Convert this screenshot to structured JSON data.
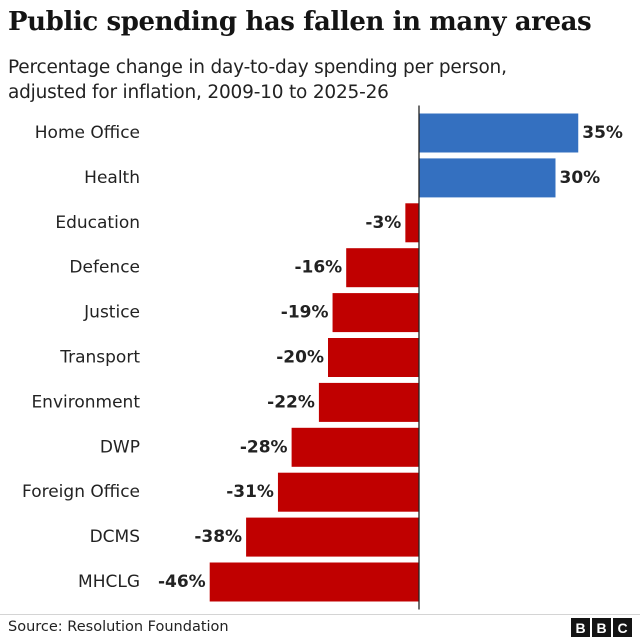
{
  "header": {
    "title": "Public spending has fallen in many areas",
    "subtitle_line1": "Percentage change in day-to-day spending per person,",
    "subtitle_line2": "adjusted for inflation, 2009-10 to 2025-26"
  },
  "colors": {
    "positive": "#3470c0",
    "negative": "#c00000",
    "axis": "#222222"
  },
  "chart_data": {
    "type": "bar",
    "orientation": "horizontal",
    "title": "Public spending has fallen in many areas",
    "subtitle": "Percentage change in day-to-day spending per person, adjusted for inflation, 2009-10 to 2025-26",
    "categories": [
      "Home Office",
      "Health",
      "Education",
      "Defence",
      "Justice",
      "Transport",
      "Environment",
      "DWP",
      "Foreign Office",
      "DCMS",
      "MHCLG"
    ],
    "values": [
      35,
      30,
      -3,
      -16,
      -19,
      -20,
      -22,
      -28,
      -31,
      -38,
      -46
    ],
    "value_labels": [
      "35%",
      "30%",
      "-3%",
      "-16%",
      "-19%",
      "-20%",
      "-22%",
      "-28%",
      "-31%",
      "-38%",
      "-46%"
    ],
    "unit": "%",
    "xlim": [
      -46,
      35
    ],
    "xlabel": "",
    "ylabel": "",
    "grid": false
  },
  "footer": {
    "source": "Source: Resolution Foundation",
    "logo_letters": [
      "B",
      "B",
      "C"
    ]
  }
}
